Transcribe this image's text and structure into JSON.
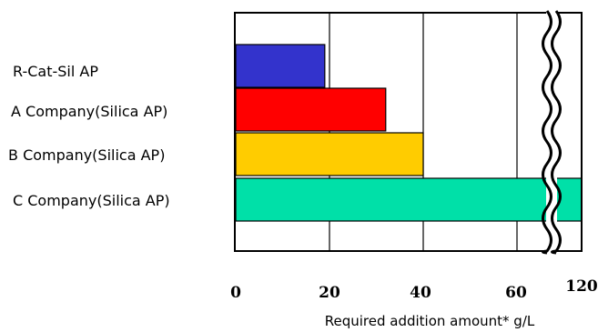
{
  "chart_data": {
    "type": "bar",
    "orientation": "horizontal",
    "categories": [
      "R-Cat-Sil AP",
      "A Company(Silica AP)",
      "B Company(Silica AP)",
      "C Company(Silica AP)"
    ],
    "values": [
      19,
      32,
      40,
      120
    ],
    "colors": [
      "#3333cc",
      "#ff0000",
      "#ffcc00",
      "#00e0a8"
    ],
    "xticks": [
      "0",
      "20",
      "40",
      "60",
      "120"
    ],
    "xtick_values": [
      0,
      20,
      40,
      60,
      120
    ],
    "xlabel": "Required addition amount*  g/L",
    "axis_break": {
      "from": 60,
      "to": 120
    },
    "grid": true,
    "title": ""
  }
}
